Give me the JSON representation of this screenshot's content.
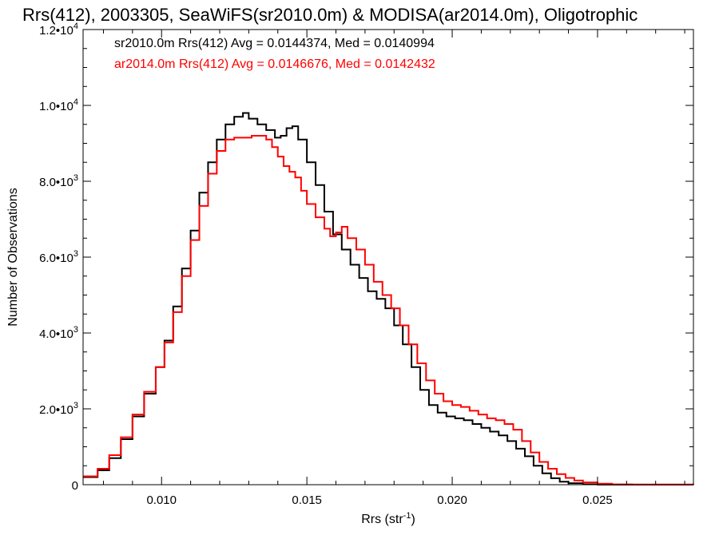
{
  "chart_data": {
    "type": "line",
    "title": "Rrs(412), 2003305, SeaWiFS(sr2010.0m) & MODISA(ar2014.0m), Oligotrophic",
    "xlabel": "Rrs (str",
    "xlabel_sup": "-1",
    "xlabel_close": ")",
    "ylabel": "Number of Observations",
    "xlim": [
      0.0073,
      0.0283
    ],
    "ylim": [
      0,
      12000
    ],
    "grid": false,
    "step": true,
    "x_ticks": [
      {
        "value": 0.01,
        "label": "0.010"
      },
      {
        "value": 0.015,
        "label": "0.015"
      },
      {
        "value": 0.02,
        "label": "0.020"
      },
      {
        "value": 0.025,
        "label": "0.025"
      }
    ],
    "y_ticks": [
      {
        "value": 0,
        "base": "0",
        "exp": ""
      },
      {
        "value": 2000,
        "base": "2.0•1 0",
        "exp": "3"
      },
      {
        "value": 4000,
        "base": "4.0•1 0",
        "exp": "3"
      },
      {
        "value": 6000,
        "base": "6.0•1 0",
        "exp": "3"
      },
      {
        "value": 8000,
        "base": "8.0•1 0",
        "exp": "3"
      },
      {
        "value": 10000,
        "base": "1.0•1 0",
        "exp": "4"
      },
      {
        "value": 12000,
        "base": "1.2•1 0",
        "exp": "4"
      }
    ],
    "series": [
      {
        "name": "sr2010.0m Rrs(412) Avg = 0.0144374, Med = 0.0140994",
        "color": "#000000",
        "points": [
          [
            0.0073,
            200
          ],
          [
            0.0078,
            380
          ],
          [
            0.0082,
            700
          ],
          [
            0.0086,
            1200
          ],
          [
            0.009,
            1800
          ],
          [
            0.0094,
            2400
          ],
          [
            0.0098,
            3100
          ],
          [
            0.0101,
            3800
          ],
          [
            0.0104,
            4700
          ],
          [
            0.0107,
            5700
          ],
          [
            0.011,
            6700
          ],
          [
            0.0113,
            7700
          ],
          [
            0.0116,
            8500
          ],
          [
            0.0119,
            9100
          ],
          [
            0.0122,
            9500
          ],
          [
            0.0125,
            9700
          ],
          [
            0.0128,
            9800
          ],
          [
            0.013,
            9650
          ],
          [
            0.0133,
            9500
          ],
          [
            0.0136,
            9350
          ],
          [
            0.0139,
            9150
          ],
          [
            0.0141,
            9200
          ],
          [
            0.0143,
            9400
          ],
          [
            0.0145,
            9450
          ],
          [
            0.0147,
            9100
          ],
          [
            0.015,
            8500
          ],
          [
            0.0153,
            7900
          ],
          [
            0.0156,
            7200
          ],
          [
            0.0159,
            6600
          ],
          [
            0.0162,
            6200
          ],
          [
            0.0165,
            5800
          ],
          [
            0.0168,
            5450
          ],
          [
            0.0171,
            5100
          ],
          [
            0.0174,
            4900
          ],
          [
            0.0177,
            4650
          ],
          [
            0.018,
            4200
          ],
          [
            0.0183,
            3700
          ],
          [
            0.0186,
            3100
          ],
          [
            0.0189,
            2500
          ],
          [
            0.0192,
            2100
          ],
          [
            0.0195,
            1900
          ],
          [
            0.0198,
            1800
          ],
          [
            0.0201,
            1750
          ],
          [
            0.0204,
            1700
          ],
          [
            0.0207,
            1600
          ],
          [
            0.021,
            1500
          ],
          [
            0.0213,
            1400
          ],
          [
            0.0216,
            1300
          ],
          [
            0.0219,
            1150
          ],
          [
            0.0222,
            950
          ],
          [
            0.0225,
            750
          ],
          [
            0.0228,
            500
          ],
          [
            0.0231,
            300
          ],
          [
            0.0234,
            170
          ],
          [
            0.0237,
            80
          ],
          [
            0.024,
            40
          ],
          [
            0.0245,
            10
          ],
          [
            0.025,
            2
          ],
          [
            0.0283,
            0
          ]
        ]
      },
      {
        "name": "ar2014.0m Rrs(412) Avg = 0.0146676, Med = 0.0142432",
        "color": "#ff0000",
        "points": [
          [
            0.0073,
            220
          ],
          [
            0.0078,
            420
          ],
          [
            0.0082,
            780
          ],
          [
            0.0086,
            1250
          ],
          [
            0.009,
            1850
          ],
          [
            0.0094,
            2450
          ],
          [
            0.0098,
            3100
          ],
          [
            0.0101,
            3750
          ],
          [
            0.0104,
            4550
          ],
          [
            0.0107,
            5500
          ],
          [
            0.011,
            6450
          ],
          [
            0.0113,
            7350
          ],
          [
            0.0116,
            8200
          ],
          [
            0.0119,
            8800
          ],
          [
            0.0122,
            9100
          ],
          [
            0.0125,
            9150
          ],
          [
            0.0128,
            9150
          ],
          [
            0.0131,
            9200
          ],
          [
            0.0134,
            9200
          ],
          [
            0.0136,
            9100
          ],
          [
            0.0138,
            8900
          ],
          [
            0.014,
            8650
          ],
          [
            0.0142,
            8400
          ],
          [
            0.0144,
            8250
          ],
          [
            0.0146,
            8100
          ],
          [
            0.0148,
            7750
          ],
          [
            0.015,
            7400
          ],
          [
            0.0153,
            7050
          ],
          [
            0.0156,
            6750
          ],
          [
            0.0158,
            6550
          ],
          [
            0.016,
            6650
          ],
          [
            0.0162,
            6800
          ],
          [
            0.0164,
            6500
          ],
          [
            0.0167,
            6200
          ],
          [
            0.017,
            5800
          ],
          [
            0.0173,
            5350
          ],
          [
            0.0176,
            5000
          ],
          [
            0.0179,
            4650
          ],
          [
            0.0182,
            4200
          ],
          [
            0.0185,
            3700
          ],
          [
            0.0188,
            3200
          ],
          [
            0.0191,
            2750
          ],
          [
            0.0194,
            2400
          ],
          [
            0.0197,
            2200
          ],
          [
            0.02,
            2100
          ],
          [
            0.0203,
            2050
          ],
          [
            0.0206,
            1950
          ],
          [
            0.0209,
            1850
          ],
          [
            0.0212,
            1750
          ],
          [
            0.0215,
            1700
          ],
          [
            0.0218,
            1600
          ],
          [
            0.0221,
            1450
          ],
          [
            0.0224,
            1150
          ],
          [
            0.0227,
            850
          ],
          [
            0.023,
            600
          ],
          [
            0.0233,
            420
          ],
          [
            0.0236,
            280
          ],
          [
            0.0239,
            180
          ],
          [
            0.0242,
            110
          ],
          [
            0.0245,
            60
          ],
          [
            0.025,
            25
          ],
          [
            0.0255,
            8
          ],
          [
            0.0262,
            2
          ],
          [
            0.0283,
            0
          ]
        ]
      }
    ]
  }
}
